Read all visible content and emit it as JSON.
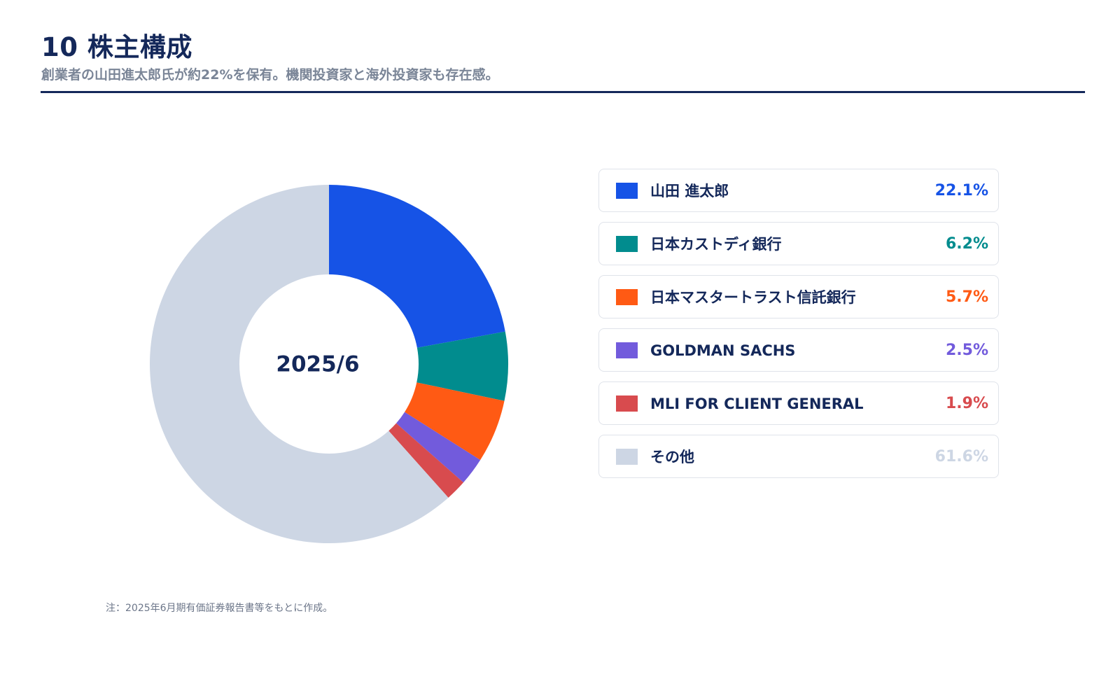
{
  "header": {
    "title": "10 株主構成",
    "subtitle": "創業者の山田進太郎氏が約22%を保有。機関投資家と海外投資家も存在感。"
  },
  "chart_data": {
    "type": "pie",
    "center_label": "2025/6",
    "categories": [
      "山田 進太郎",
      "日本カストディ銀行",
      "日本マスタートラスト信託銀行",
      "GOLDMAN SACHS",
      "MLI FOR CLIENT GENERAL",
      "その他"
    ],
    "values": [
      22.1,
      6.2,
      5.7,
      2.5,
      1.9,
      61.6
    ],
    "value_labels": [
      "22.1%",
      "6.2%",
      "5.7%",
      "2.5%",
      "1.9%",
      "61.6%"
    ],
    "colors": [
      "#1653e6",
      "#018c8e",
      "#ff5a14",
      "#725bdc",
      "#d84b4e",
      "#cdd6e4"
    ],
    "legend_position": "right"
  },
  "note": "注：2025年6月期有価証券報告書等をもとに作成。"
}
